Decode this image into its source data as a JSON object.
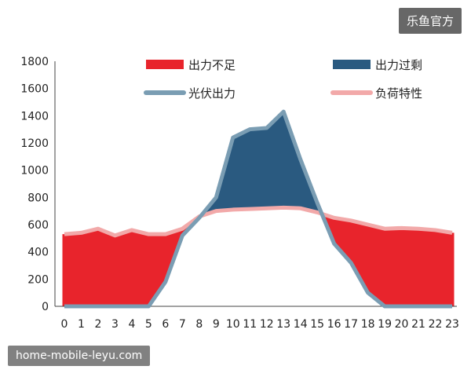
{
  "watermarks": {
    "top": "乐鱼官方",
    "bottom": "home-mobile-leyu.com"
  },
  "chart_data": {
    "type": "bar",
    "title": "",
    "xlabel": "",
    "ylabel": "",
    "x": [
      0,
      1,
      2,
      3,
      4,
      5,
      6,
      7,
      8,
      9,
      10,
      11,
      12,
      13,
      14,
      15,
      16,
      17,
      18,
      19,
      20,
      21,
      22,
      23
    ],
    "ylim": [
      0,
      1800
    ],
    "yticks": [
      0,
      200,
      400,
      600,
      800,
      1000,
      1200,
      1400,
      1600,
      1800
    ],
    "grid": false,
    "legend_position": "top",
    "series": [
      {
        "name": "负荷特性",
        "kind": "line",
        "color": "#f2a9a9",
        "values": [
          530,
          540,
          570,
          520,
          560,
          530,
          530,
          570,
          660,
          700,
          710,
          715,
          720,
          725,
          720,
          690,
          650,
          630,
          600,
          570,
          575,
          570,
          560,
          540
        ]
      },
      {
        "name": "光伏出力",
        "kind": "line",
        "color": "#7a9db3",
        "values": [
          0,
          0,
          0,
          0,
          0,
          0,
          180,
          520,
          650,
          800,
          1240,
          1300,
          1310,
          1430,
          1080,
          760,
          460,
          320,
          100,
          0,
          0,
          0,
          0,
          0
        ]
      }
    ],
    "fill_legend": [
      {
        "name": "出力不足",
        "color": "#e8242c",
        "meaning": "load above PV output"
      },
      {
        "name": "出力过剩",
        "color": "#2a5a80",
        "meaning": "PV output above load"
      }
    ]
  }
}
